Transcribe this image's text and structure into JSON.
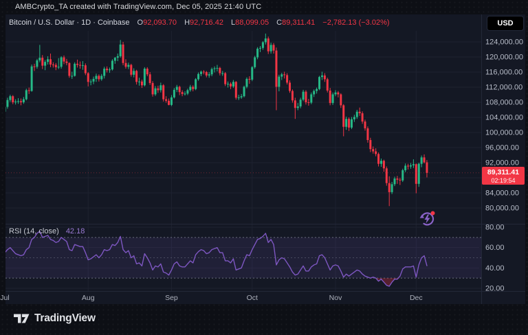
{
  "attribution": "AMBCrypto_TA created with TradingView.com, Dec 05, 2025 21:40 UTC",
  "symbol_row": {
    "title": "Bitcoin / U.S. Dollar · 1D · Coinbase",
    "ohlc": [
      {
        "k": "O",
        "v": "92,093.70"
      },
      {
        "k": "H",
        "v": "92,716.42"
      },
      {
        "k": "L",
        "v": "88,099.05"
      },
      {
        "k": "C",
        "v": "89,311.41"
      }
    ],
    "change": "−2,782.13 (−3.02%)"
  },
  "currency_button": "USD",
  "last_price": {
    "price": "89,311.41",
    "countdown": "02:19:54"
  },
  "rsi_row": {
    "label": "RSI (14, close)",
    "value": "42.18"
  },
  "footer": {
    "logo_text": "TradingView"
  },
  "colors": {
    "up": "#26b987",
    "down": "#f23645",
    "rsi_line": "#7e57c2",
    "rsi_value_text": "#9b7bd4",
    "grid": "#1e2230",
    "sep": "#232838",
    "axis_text": "#b8bdc9",
    "month_text": "#aeb2bd",
    "rsi_band": "rgba(126,87,194,0.12)",
    "oversold_fill": "rgba(242,54,69,0.3)",
    "dashed_level": "#aab0bf",
    "panel_bg": "#141824",
    "page_bg": "#0d0f15",
    "label_bg": "#f23645"
  },
  "chart_data": [
    {
      "type": "candlestick",
      "title": "Bitcoin / U.S. Dollar · 1D · Coinbase",
      "unit": "USD thousands",
      "x_axis": {
        "labels": [
          "Jul",
          "Aug",
          "Sep",
          "Oct",
          "Nov",
          "Dec"
        ],
        "start_indices": [
          0,
          31,
          62,
          92,
          123,
          153
        ]
      },
      "ylim_thousands": [
        80,
        126.5
      ],
      "gridline_values": [
        124,
        120,
        116,
        112,
        108,
        104,
        100,
        96,
        92,
        88,
        84,
        80
      ],
      "y_ticks": [
        {
          "value": 124,
          "label": "124,000.00"
        },
        {
          "value": 120,
          "label": "120,000.00"
        },
        {
          "value": 116,
          "label": "116,000.00"
        },
        {
          "value": 112,
          "label": "112,000.00"
        },
        {
          "value": 108,
          "label": "108,000.00"
        },
        {
          "value": 104,
          "label": "104,000.00"
        },
        {
          "value": 100,
          "label": "100,000.00"
        },
        {
          "value": 96,
          "label": "96,000.00"
        },
        {
          "value": 92,
          "label": "92,000.00"
        },
        {
          "value": 84,
          "label": "84,000.00"
        },
        {
          "value": 80,
          "label": "80,000.00"
        }
      ],
      "last_price_thousands": 89.31141,
      "candles": [
        [
          105.5,
          107.4,
          104.9,
          106.8
        ],
        [
          106.8,
          109.2,
          106.3,
          108.6
        ],
        [
          108.6,
          110.0,
          108.1,
          109.6
        ],
        [
          109.6,
          109.9,
          107.5,
          108.0
        ],
        [
          108.0,
          108.8,
          107.4,
          108.2
        ],
        [
          108.2,
          109.1,
          107.6,
          108.3
        ],
        [
          108.3,
          109.0,
          107.2,
          108.0
        ],
        [
          108.0,
          109.4,
          107.6,
          108.8
        ],
        [
          108.8,
          111.6,
          108.5,
          111.2
        ],
        [
          111.2,
          111.9,
          110.2,
          111.0
        ],
        [
          111.0,
          118.0,
          110.8,
          117.5
        ],
        [
          117.5,
          118.2,
          116.3,
          117.4
        ],
        [
          117.4,
          119.5,
          116.9,
          119.1
        ],
        [
          119.1,
          123.2,
          118.6,
          119.8
        ],
        [
          119.8,
          120.5,
          116.8,
          117.7
        ],
        [
          117.7,
          119.2,
          116.5,
          118.7
        ],
        [
          118.7,
          120.2,
          118.0,
          119.4
        ],
        [
          119.4,
          120.9,
          117.3,
          118.0
        ],
        [
          118.0,
          118.6,
          117.2,
          117.9
        ],
        [
          117.9,
          118.4,
          116.5,
          117.3
        ],
        [
          117.3,
          119.7,
          116.8,
          117.4
        ],
        [
          117.4,
          120.2,
          116.9,
          119.9
        ],
        [
          119.9,
          120.4,
          118.1,
          118.8
        ],
        [
          118.8,
          119.5,
          117.8,
          118.4
        ],
        [
          118.4,
          118.6,
          114.5,
          115.0
        ],
        [
          115.0,
          116.1,
          114.2,
          115.0
        ],
        [
          115.0,
          118.6,
          114.8,
          118.2
        ],
        [
          118.2,
          119.3,
          117.2,
          117.9
        ],
        [
          117.9,
          118.8,
          116.9,
          117.7
        ],
        [
          117.7,
          118.9,
          116.6,
          117.8
        ],
        [
          117.8,
          118.3,
          115.2,
          115.7
        ],
        [
          115.7,
          116.0,
          112.2,
          113.4
        ],
        [
          113.4,
          114.1,
          112.5,
          113.5
        ],
        [
          113.5,
          114.8,
          112.8,
          114.2
        ],
        [
          114.2,
          115.6,
          113.4,
          115.0
        ],
        [
          115.0,
          115.4,
          113.5,
          114.1
        ],
        [
          114.1,
          115.5,
          113.7,
          115.0
        ],
        [
          115.0,
          117.4,
          114.3,
          116.9
        ],
        [
          116.9,
          117.5,
          115.9,
          116.5
        ],
        [
          116.5,
          117.2,
          115.8,
          116.7
        ],
        [
          116.7,
          119.4,
          116.4,
          119.0
        ],
        [
          119.0,
          120.0,
          118.2,
          119.8
        ],
        [
          119.8,
          120.9,
          118.9,
          120.2
        ],
        [
          120.2,
          124.5,
          119.8,
          123.3
        ],
        [
          123.3,
          124.0,
          117.8,
          118.4
        ],
        [
          118.4,
          119.4,
          116.9,
          117.4
        ],
        [
          117.4,
          118.5,
          116.8,
          117.9
        ],
        [
          117.9,
          118.2,
          114.8,
          115.3
        ],
        [
          115.3,
          117.0,
          114.6,
          116.3
        ],
        [
          116.3,
          116.6,
          112.7,
          113.4
        ],
        [
          113.4,
          114.5,
          112.4,
          113.5
        ],
        [
          113.5,
          114.0,
          111.8,
          112.5
        ],
        [
          112.5,
          117.3,
          112.2,
          116.9
        ],
        [
          116.9,
          117.3,
          114.9,
          115.4
        ],
        [
          115.4,
          116.0,
          112.6,
          113.1
        ],
        [
          113.1,
          113.6,
          109.5,
          110.1
        ],
        [
          110.1,
          112.3,
          109.7,
          111.7
        ],
        [
          111.7,
          112.4,
          110.5,
          111.2
        ],
        [
          111.2,
          113.2,
          110.6,
          112.5
        ],
        [
          112.5,
          112.8,
          108.2,
          108.8
        ],
        [
          108.8,
          109.6,
          107.9,
          108.4
        ],
        [
          108.4,
          109.0,
          107.2,
          107.3
        ],
        [
          107.3,
          109.9,
          107.0,
          109.3
        ],
        [
          109.3,
          111.8,
          109.0,
          111.3
        ],
        [
          111.3,
          112.6,
          110.7,
          112.1
        ],
        [
          112.1,
          112.4,
          109.9,
          110.7
        ],
        [
          110.7,
          111.2,
          109.6,
          110.2
        ],
        [
          110.2,
          110.9,
          109.8,
          110.3
        ],
        [
          110.3,
          111.6,
          109.9,
          111.2
        ],
        [
          111.2,
          112.6,
          110.8,
          112.1
        ],
        [
          112.1,
          112.5,
          110.9,
          111.5
        ],
        [
          111.5,
          114.4,
          111.2,
          114.1
        ],
        [
          114.1,
          115.9,
          113.7,
          115.5
        ],
        [
          115.5,
          116.4,
          114.9,
          116.1
        ],
        [
          116.1,
          116.5,
          115.4,
          116.0
        ],
        [
          116.0,
          116.3,
          114.6,
          115.1
        ],
        [
          115.1,
          116.0,
          114.5,
          115.4
        ],
        [
          115.4,
          117.2,
          114.9,
          116.8
        ],
        [
          116.8,
          117.5,
          115.9,
          117.0
        ],
        [
          117.0,
          117.9,
          116.2,
          117.1
        ],
        [
          117.1,
          117.4,
          115.1,
          115.7
        ],
        [
          115.7,
          116.3,
          115.0,
          115.7
        ],
        [
          115.7,
          116.0,
          112.3,
          112.8
        ],
        [
          112.8,
          113.5,
          111.9,
          112.9
        ],
        [
          112.9,
          113.3,
          111.5,
          112.2
        ],
        [
          112.2,
          113.9,
          111.8,
          113.4
        ],
        [
          113.4,
          113.6,
          108.7,
          109.2
        ],
        [
          109.2,
          110.0,
          108.6,
          109.3
        ],
        [
          109.3,
          110.2,
          108.9,
          109.6
        ],
        [
          109.6,
          112.4,
          109.3,
          112.1
        ],
        [
          112.1,
          114.6,
          111.7,
          114.2
        ],
        [
          114.2,
          114.9,
          112.9,
          114.0
        ],
        [
          114.0,
          117.6,
          113.6,
          117.3
        ],
        [
          117.3,
          120.3,
          116.9,
          119.9
        ],
        [
          119.9,
          122.6,
          119.4,
          122.2
        ],
        [
          122.2,
          122.9,
          121.3,
          122.4
        ],
        [
          122.4,
          124.2,
          121.9,
          123.9
        ],
        [
          123.9,
          126.2,
          123.3,
          124.9
        ],
        [
          124.9,
          125.4,
          120.8,
          121.5
        ],
        [
          121.5,
          123.8,
          120.9,
          123.2
        ],
        [
          123.2,
          123.7,
          120.9,
          121.7
        ],
        [
          121.7,
          122.5,
          105.9,
          112.1
        ],
        [
          112.1,
          115.3,
          110.9,
          114.8
        ],
        [
          114.8,
          115.8,
          113.9,
          115.4
        ],
        [
          115.4,
          116.1,
          114.3,
          115.2
        ],
        [
          115.2,
          115.7,
          112.7,
          113.2
        ],
        [
          113.2,
          113.8,
          110.5,
          111.0
        ],
        [
          111.0,
          111.4,
          107.9,
          108.5
        ],
        [
          108.5,
          109.2,
          103.6,
          106.5
        ],
        [
          106.5,
          107.8,
          105.9,
          106.9
        ],
        [
          106.9,
          109.2,
          106.4,
          108.7
        ],
        [
          108.7,
          111.3,
          108.3,
          110.8
        ],
        [
          110.8,
          111.2,
          107.4,
          108.0
        ],
        [
          108.0,
          108.9,
          107.1,
          107.9
        ],
        [
          107.9,
          110.6,
          107.5,
          110.1
        ],
        [
          110.1,
          111.4,
          109.4,
          111.0
        ],
        [
          111.0,
          111.9,
          110.3,
          111.5
        ],
        [
          111.5,
          115.0,
          111.2,
          114.7
        ],
        [
          114.7,
          116.1,
          113.9,
          115.1
        ],
        [
          115.1,
          115.7,
          113.4,
          114.1
        ],
        [
          114.1,
          114.5,
          110.6,
          111.1
        ],
        [
          111.1,
          111.8,
          107.2,
          107.8
        ],
        [
          107.8,
          110.6,
          107.3,
          110.1
        ],
        [
          110.1,
          111.2,
          109.6,
          110.6
        ],
        [
          110.6,
          111.0,
          109.3,
          110.1
        ],
        [
          110.1,
          110.4,
          106.5,
          107.2
        ],
        [
          107.2,
          107.5,
          99.0,
          101.5
        ],
        [
          101.5,
          104.2,
          100.7,
          103.6
        ],
        [
          103.6,
          104.0,
          100.4,
          101.3
        ],
        [
          101.3,
          104.1,
          100.9,
          103.5
        ],
        [
          103.5,
          104.7,
          102.8,
          104.1
        ],
        [
          104.1,
          106.0,
          103.6,
          105.5
        ],
        [
          105.5,
          106.6,
          104.4,
          105.1
        ],
        [
          105.1,
          105.6,
          102.3,
          102.9
        ],
        [
          102.9,
          103.4,
          100.5,
          101.1
        ],
        [
          101.1,
          101.6,
          97.3,
          98.0
        ],
        [
          98.0,
          98.6,
          94.8,
          95.6
        ],
        [
          95.6,
          96.3,
          94.4,
          95.0
        ],
        [
          95.0,
          95.8,
          93.7,
          94.3
        ],
        [
          94.3,
          94.7,
          91.0,
          91.7
        ],
        [
          91.7,
          93.1,
          90.9,
          92.5
        ],
        [
          92.5,
          92.8,
          89.6,
          90.5
        ],
        [
          90.5,
          91.0,
          85.9,
          86.6
        ],
        [
          86.6,
          88.4,
          80.5,
          84.2
        ],
        [
          84.2,
          86.9,
          83.7,
          86.3
        ],
        [
          86.3,
          88.3,
          85.8,
          87.8
        ],
        [
          87.8,
          88.5,
          86.4,
          87.5
        ],
        [
          87.5,
          88.0,
          86.1,
          87.3
        ],
        [
          87.3,
          90.4,
          86.9,
          90.0
        ],
        [
          90.0,
          91.8,
          89.5,
          91.2
        ],
        [
          91.2,
          91.7,
          90.2,
          91.0
        ],
        [
          91.0,
          91.9,
          90.4,
          91.3
        ],
        [
          91.3,
          92.9,
          90.6,
          91.6
        ],
        [
          91.6,
          91.8,
          83.9,
          86.4
        ],
        [
          86.4,
          92.0,
          85.6,
          91.7
        ],
        [
          91.7,
          93.9,
          90.8,
          93.4
        ],
        [
          93.4,
          94.2,
          91.8,
          92.1
        ],
        [
          92.1,
          92.7,
          88.1,
          89.3
        ]
      ]
    },
    {
      "type": "line",
      "name": "RSI (14, close)",
      "last_value": 42.18,
      "levels": {
        "overbought": 70,
        "mid": 50,
        "oversold": 30
      },
      "ylim": [
        15,
        85
      ],
      "y_ticks": [
        {
          "value": 80,
          "label": "80.00"
        },
        {
          "value": 60,
          "label": "60.00"
        },
        {
          "value": 40,
          "label": "40.00"
        },
        {
          "value": 20,
          "label": "20.00"
        }
      ],
      "values": [
        55,
        58,
        60,
        57,
        54,
        53,
        52,
        53,
        58,
        60,
        68,
        70,
        74,
        76,
        70,
        71,
        72,
        68,
        67,
        65,
        66,
        70,
        68,
        66,
        58,
        57,
        63,
        62,
        61,
        61,
        55,
        48,
        49,
        51,
        53,
        50,
        53,
        58,
        57,
        58,
        63,
        62,
        65,
        71,
        58,
        55,
        57,
        50,
        52,
        44,
        45,
        42,
        54,
        50,
        45,
        38,
        42,
        41,
        44,
        36,
        35,
        33,
        38,
        44,
        46,
        42,
        41,
        41,
        44,
        47,
        45,
        53,
        56,
        58,
        57,
        54,
        55,
        58,
        59,
        60,
        55,
        55,
        47,
        47,
        45,
        49,
        38,
        39,
        40,
        47,
        53,
        52,
        58,
        63,
        68,
        69,
        71,
        74,
        65,
        68,
        63,
        43,
        48,
        50,
        49,
        45,
        41,
        36,
        33,
        34,
        38,
        42,
        37,
        37,
        41,
        43,
        44,
        52,
        53,
        50,
        44,
        38,
        42,
        43,
        42,
        37,
        31,
        34,
        32,
        34,
        36,
        38,
        37,
        34,
        32,
        31,
        30,
        31,
        30,
        27,
        29,
        26,
        23,
        22,
        26,
        29,
        29,
        32,
        39,
        41,
        41,
        41,
        42,
        31,
        43,
        50,
        52,
        42.18
      ]
    }
  ]
}
